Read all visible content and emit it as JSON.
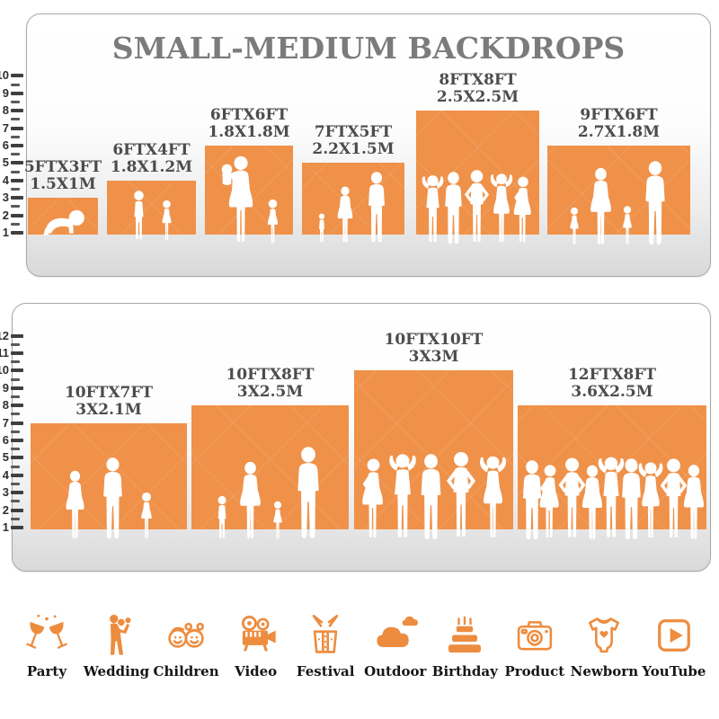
{
  "title": "SMALL-MEDIUM BACKDROPS",
  "colors": {
    "backdrop_orange": "#EF9149",
    "icon_orange": "#ED8C3F",
    "title_gray": "#7B7B7B",
    "label_gray": "#4C4C4C"
  },
  "panels": [
    {
      "name": "backdrops-top-panel",
      "scale_max": 10,
      "items": [
        {
          "label_ft": "5FTX3FT",
          "label_m": "1.5X1M",
          "width_ft": 5,
          "height_ft": 3,
          "people": [
            {
              "type": "baby-crawl",
              "h": 32
            }
          ]
        },
        {
          "label_ft": "6FTX4FT",
          "label_m": "1.8X1.2M",
          "width_ft": 6,
          "height_ft": 4,
          "people": [
            {
              "type": "boy",
              "h": 58
            },
            {
              "type": "girl",
              "h": 47
            }
          ]
        },
        {
          "label_ft": "6FTX6FT",
          "label_m": "1.8X1.8M",
          "width_ft": 6,
          "height_ft": 6,
          "people": [
            {
              "type": "mom-baby",
              "h": 100
            },
            {
              "type": "girl",
              "h": 52
            }
          ]
        },
        {
          "label_ft": "7FTX5FT",
          "label_m": "2.2X1.5M",
          "width_ft": 7,
          "height_ft": 5,
          "people": [
            {
              "type": "toddler",
              "h": 34
            },
            {
              "type": "woman",
              "h": 64
            },
            {
              "type": "man",
              "h": 80
            }
          ]
        },
        {
          "label_ft": "8FTX8FT",
          "label_m": "2.5X2.5M",
          "width_ft": 8,
          "height_ft": 8,
          "people": [
            {
              "type": "man-hands-head",
              "h": 80
            },
            {
              "type": "man",
              "h": 82
            },
            {
              "type": "man-hands-hips",
              "h": 85
            },
            {
              "type": "woman-hands-head",
              "h": 82
            },
            {
              "type": "woman-pose",
              "h": 78
            }
          ]
        },
        {
          "label_ft": "9FTX6FT",
          "label_m": "2.7X1.8M",
          "width_ft": 9,
          "height_ft": 6,
          "people": [
            {
              "type": "girl",
              "h": 44
            },
            {
              "type": "woman",
              "h": 88
            },
            {
              "type": "girl",
              "h": 46
            },
            {
              "type": "man",
              "h": 95
            }
          ]
        }
      ]
    },
    {
      "name": "backdrops-bottom-panel",
      "scale_max": 12,
      "items": [
        {
          "label_ft": "10FTX7FT",
          "label_m": "3X2.1M",
          "width_ft": 10,
          "height_ft": 7,
          "people": [
            {
              "type": "woman",
              "h": 78
            },
            {
              "type": "man",
              "h": 92
            },
            {
              "type": "girl",
              "h": 54
            }
          ]
        },
        {
          "label_ft": "10FTX8FT",
          "label_m": "3X2.5M",
          "width_ft": 10,
          "height_ft": 8,
          "people": [
            {
              "type": "boy",
              "h": 50
            },
            {
              "type": "woman",
              "h": 88
            },
            {
              "type": "girl",
              "h": 44
            },
            {
              "type": "man",
              "h": 104
            }
          ]
        },
        {
          "label_ft": "10FTX10FT",
          "label_m": "3X3M",
          "width_ft": 10,
          "height_ft": 10,
          "people": [
            {
              "type": "woman-pose",
              "h": 93
            },
            {
              "type": "man-hands-head",
              "h": 99
            },
            {
              "type": "man",
              "h": 97
            },
            {
              "type": "man-hands-hips",
              "h": 101
            },
            {
              "type": "woman-hands-head",
              "h": 97
            }
          ]
        },
        {
          "label_ft": "12FTX8FT",
          "label_m": "3.6X2.5M",
          "width_ft": 12,
          "height_ft": 8,
          "people": [
            {
              "type": "man",
              "h": 90
            },
            {
              "type": "woman-pose",
              "h": 86
            },
            {
              "type": "man-hands-hips",
              "h": 94
            },
            {
              "type": "woman",
              "h": 85
            },
            {
              "type": "man-hands-head",
              "h": 96
            },
            {
              "type": "man",
              "h": 92
            },
            {
              "type": "woman-hands-head",
              "h": 90
            },
            {
              "type": "man-hands-hips",
              "h": 93
            },
            {
              "type": "woman",
              "h": 86
            }
          ]
        }
      ]
    }
  ],
  "categories": [
    {
      "label": "Party",
      "icon": "party-icon"
    },
    {
      "label": "Wedding",
      "icon": "wedding-icon"
    },
    {
      "label": "Children",
      "icon": "children-icon"
    },
    {
      "label": "Video",
      "icon": "video-icon"
    },
    {
      "label": "Festival",
      "icon": "festival-icon"
    },
    {
      "label": "Outdoor",
      "icon": "outdoor-icon"
    },
    {
      "label": "Birthday",
      "icon": "birthday-icon"
    },
    {
      "label": "Product",
      "icon": "product-icon"
    },
    {
      "label": "Newborn",
      "icon": "newborn-icon"
    },
    {
      "label": "YouTube",
      "icon": "youtube-icon"
    }
  ]
}
